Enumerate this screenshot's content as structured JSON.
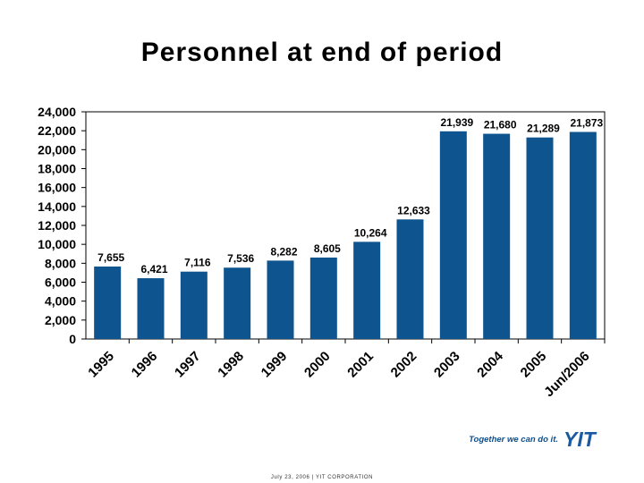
{
  "slide": {
    "title": "Personnel at end of period",
    "footer": "July 23, 2006   |   YIT CORPORATION"
  },
  "brand": {
    "slogan": "Together we can do it.",
    "logo_text": "YIT",
    "color": "#1a5aa0"
  },
  "chart_data": {
    "type": "bar",
    "title": "Personnel at end of period",
    "categories": [
      "1995",
      "1996",
      "1997",
      "1998",
      "1999",
      "2000",
      "2001",
      "2002",
      "2003",
      "2004",
      "2005",
      "Jun/2006"
    ],
    "values": [
      7655,
      6421,
      7116,
      7536,
      8282,
      8605,
      10264,
      12633,
      21939,
      21680,
      21289,
      21873
    ],
    "data_labels": [
      "7,655",
      "6,421",
      "7,116",
      "7,536",
      "8,282",
      "8,605",
      "10,264",
      "12,633",
      "21,939",
      "21,680",
      "21,289",
      "21,873"
    ],
    "ylim": [
      0,
      24000
    ],
    "yticks": [
      0,
      2000,
      4000,
      6000,
      8000,
      10000,
      12000,
      14000,
      16000,
      18000,
      20000,
      22000,
      24000
    ],
    "ytick_labels": [
      "0",
      "2,000",
      "4,000",
      "6,000",
      "8,000",
      "10,000",
      "12,000",
      "14,000",
      "16,000",
      "18,000",
      "20,000",
      "22,000",
      "24,000"
    ],
    "xlabel": "",
    "ylabel": "",
    "bar_color": "#0e5590",
    "grid": false,
    "legend": "none"
  }
}
